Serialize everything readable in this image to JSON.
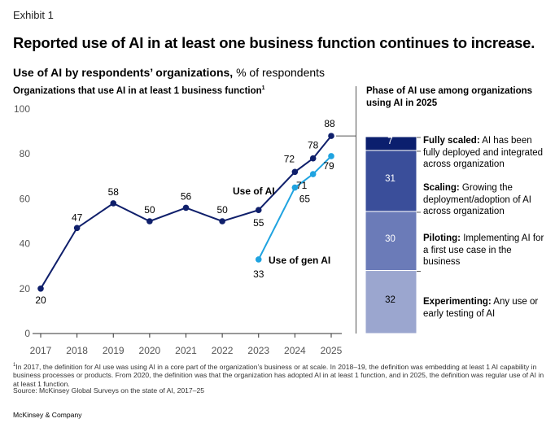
{
  "header": {
    "exhibit": "Exhibit 1",
    "title": "Reported use of AI in at least one business function continues to increase.",
    "subtitle_bold": "Use of AI by respondents’ organizations,",
    "subtitle_rest": " % of respondents"
  },
  "left_panel": {
    "heading": "Organizations that use AI in at least 1 business function",
    "heading_footnote_mark": "1"
  },
  "right_panel": {
    "heading": "Phase of AI use among organizations using AI in 2025"
  },
  "colors": {
    "use_of_ai": "#0f1f6b",
    "gen_ai": "#1fa3e0",
    "axis_text": "#555555",
    "grid": "#cccccc",
    "phase_fully_scaled": "#0b1f6e",
    "phase_scaling": "#3a4e9a",
    "phase_piloting": "#6b7bb8",
    "phase_experimenting": "#9ba6cf"
  },
  "chart_data": [
    {
      "type": "line",
      "title": "Organizations that use AI in at least 1 business function",
      "ylim": [
        0,
        100
      ],
      "yticks": [
        0,
        20,
        40,
        60,
        80,
        100
      ],
      "xticks": [
        "2017",
        "2018",
        "2019",
        "2020",
        "2021",
        "2022",
        "2023",
        "2024",
        "2025"
      ],
      "grid": false,
      "series": [
        {
          "name": "Use of AI",
          "x": [
            2017,
            2018,
            2019,
            2020,
            2021,
            2022,
            2023,
            2024,
            2024.5,
            2025
          ],
          "values": [
            20,
            47,
            58,
            50,
            56,
            50,
            55,
            72,
            78,
            88
          ],
          "labels": [
            "20",
            "47",
            "58",
            "50",
            "56",
            "50",
            "55",
            "72",
            "78",
            "88"
          ]
        },
        {
          "name": "Use of gen AI",
          "x": [
            2023,
            2024,
            2024.5,
            2025
          ],
          "values": [
            33,
            65,
            71,
            79
          ],
          "labels": [
            "33",
            "65",
            "71",
            "79"
          ]
        }
      ]
    },
    {
      "type": "bar",
      "title": "Phase of AI use among organizations using AI in 2025",
      "stacked": true,
      "segments": [
        {
          "name": "Fully scaled:",
          "value": 7,
          "label": "7",
          "desc": "AI has been fully deployed and integrated across organization"
        },
        {
          "name": "Scaling:",
          "value": 31,
          "label": "31",
          "desc": "Growing the deployment/adoption of AI across organization"
        },
        {
          "name": "Piloting:",
          "value": 30,
          "label": "30",
          "desc": "Implementing AI for a first use case in the business"
        },
        {
          "name": "Experimenting:",
          "value": 32,
          "label": "32",
          "desc": "Any use or early testing of AI"
        }
      ]
    }
  ],
  "footnote": {
    "mark": "1",
    "text": "In 2017, the definition for AI use was using AI in a core part of the organization’s business or at scale. In 2018–19, the definition was embedding at least 1 AI capability in business processes or products. From 2020, the definition was that the organization has adopted AI in at least 1 function, and in 2025, the definition was regular use of AI in at least 1 function.",
    "source": "Source: McKinsey Global Surveys on the state of AI, 2017–25"
  },
  "brand": "McKinsey & Company"
}
